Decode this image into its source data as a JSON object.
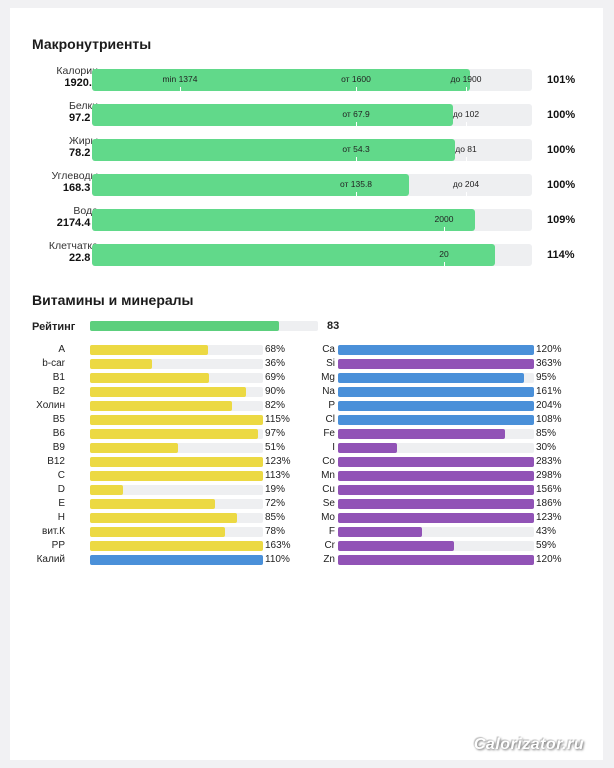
{
  "colors": {
    "macro_fill": "#61d98a",
    "vitamin_fill": "#ecd943",
    "mineral_blue": "#4a90d9",
    "mineral_purple": "#9153b6",
    "rating_fill": "#5ccf7d",
    "track": "#eeeff1"
  },
  "macros": {
    "title": "Макронутриенты",
    "rows": [
      {
        "name": "Калории",
        "value": "1920.1",
        "pct_label": "101%",
        "fill_fraction": 0.86,
        "ticks": [
          {
            "text": "min 1374",
            "at": 0.2
          },
          {
            "text": "от 1600",
            "at": 0.6
          },
          {
            "text": "до 1900",
            "at": 0.85
          }
        ]
      },
      {
        "name": "Белки",
        "value": "97.2 г",
        "pct_label": "100%",
        "fill_fraction": 0.82,
        "ticks": [
          {
            "text": "от 67.9",
            "at": 0.6
          },
          {
            "text": "до 102",
            "at": 0.85
          }
        ]
      },
      {
        "name": "Жиры",
        "value": "78.2 г",
        "pct_label": "100%",
        "fill_fraction": 0.825,
        "ticks": [
          {
            "text": "от 54.3",
            "at": 0.6
          },
          {
            "text": "до 81",
            "at": 0.85
          }
        ]
      },
      {
        "name": "Углеводы",
        "value": "168.3 г",
        "pct_label": "100%",
        "fill_fraction": 0.72,
        "ticks": [
          {
            "text": "от 135.8",
            "at": 0.6
          },
          {
            "text": "до 204",
            "at": 0.85
          }
        ]
      },
      {
        "name": "Вода",
        "value": "2174.4 г",
        "pct_label": "109%",
        "fill_fraction": 0.87,
        "ticks": [
          {
            "text": "2000",
            "at": 0.8
          }
        ]
      },
      {
        "name": "Клетчатка",
        "value": "22.8 г",
        "pct_label": "114%",
        "fill_fraction": 0.915,
        "ticks": [
          {
            "text": "20",
            "at": 0.8
          }
        ]
      }
    ]
  },
  "vitamins_minerals": {
    "title": "Витамины и минералы",
    "rating": {
      "label": "Рейтинг",
      "value": "83",
      "fraction": 0.83
    },
    "vitamins": [
      {
        "name": "A",
        "pct": "68%",
        "fraction": 0.68,
        "color": "yellow"
      },
      {
        "name": "b-car",
        "pct": "36%",
        "fraction": 0.36,
        "color": "yellow"
      },
      {
        "name": "B1",
        "pct": "69%",
        "fraction": 0.69,
        "color": "yellow"
      },
      {
        "name": "B2",
        "pct": "90%",
        "fraction": 0.9,
        "color": "yellow"
      },
      {
        "name": "Холин",
        "pct": "82%",
        "fraction": 0.82,
        "color": "yellow"
      },
      {
        "name": "B5",
        "pct": "115%",
        "fraction": 1.0,
        "color": "yellow"
      },
      {
        "name": "B6",
        "pct": "97%",
        "fraction": 0.97,
        "color": "yellow"
      },
      {
        "name": "B9",
        "pct": "51%",
        "fraction": 0.51,
        "color": "yellow"
      },
      {
        "name": "B12",
        "pct": "123%",
        "fraction": 1.0,
        "color": "yellow"
      },
      {
        "name": "C",
        "pct": "113%",
        "fraction": 1.0,
        "color": "yellow"
      },
      {
        "name": "D",
        "pct": "19%",
        "fraction": 0.19,
        "color": "yellow"
      },
      {
        "name": "E",
        "pct": "72%",
        "fraction": 0.72,
        "color": "yellow"
      },
      {
        "name": "H",
        "pct": "85%",
        "fraction": 0.85,
        "color": "yellow"
      },
      {
        "name": "вит.К",
        "pct": "78%",
        "fraction": 0.78,
        "color": "yellow"
      },
      {
        "name": "PP",
        "pct": "163%",
        "fraction": 1.0,
        "color": "yellow"
      },
      {
        "name": "Калий",
        "pct": "110%",
        "fraction": 1.0,
        "color": "blue"
      }
    ],
    "minerals": [
      {
        "name": "Ca",
        "pct": "120%",
        "fraction": 1.0,
        "color": "blue"
      },
      {
        "name": "Si",
        "pct": "363%",
        "fraction": 1.0,
        "color": "purple"
      },
      {
        "name": "Mg",
        "pct": "95%",
        "fraction": 0.95,
        "color": "blue"
      },
      {
        "name": "Na",
        "pct": "161%",
        "fraction": 1.0,
        "color": "blue"
      },
      {
        "name": "P",
        "pct": "204%",
        "fraction": 1.0,
        "color": "blue"
      },
      {
        "name": "Cl",
        "pct": "108%",
        "fraction": 1.0,
        "color": "blue"
      },
      {
        "name": "Fe",
        "pct": "85%",
        "fraction": 0.85,
        "color": "purple"
      },
      {
        "name": "I",
        "pct": "30%",
        "fraction": 0.3,
        "color": "purple"
      },
      {
        "name": "Co",
        "pct": "283%",
        "fraction": 1.0,
        "color": "purple"
      },
      {
        "name": "Mn",
        "pct": "298%",
        "fraction": 1.0,
        "color": "purple"
      },
      {
        "name": "Cu",
        "pct": "156%",
        "fraction": 1.0,
        "color": "purple"
      },
      {
        "name": "Se",
        "pct": "186%",
        "fraction": 1.0,
        "color": "purple"
      },
      {
        "name": "Mo",
        "pct": "123%",
        "fraction": 1.0,
        "color": "purple"
      },
      {
        "name": "F",
        "pct": "43%",
        "fraction": 0.43,
        "color": "purple"
      },
      {
        "name": "Cr",
        "pct": "59%",
        "fraction": 0.59,
        "color": "purple"
      },
      {
        "name": "Zn",
        "pct": "120%",
        "fraction": 1.0,
        "color": "purple"
      }
    ]
  },
  "watermark": "Calorizator.ru"
}
